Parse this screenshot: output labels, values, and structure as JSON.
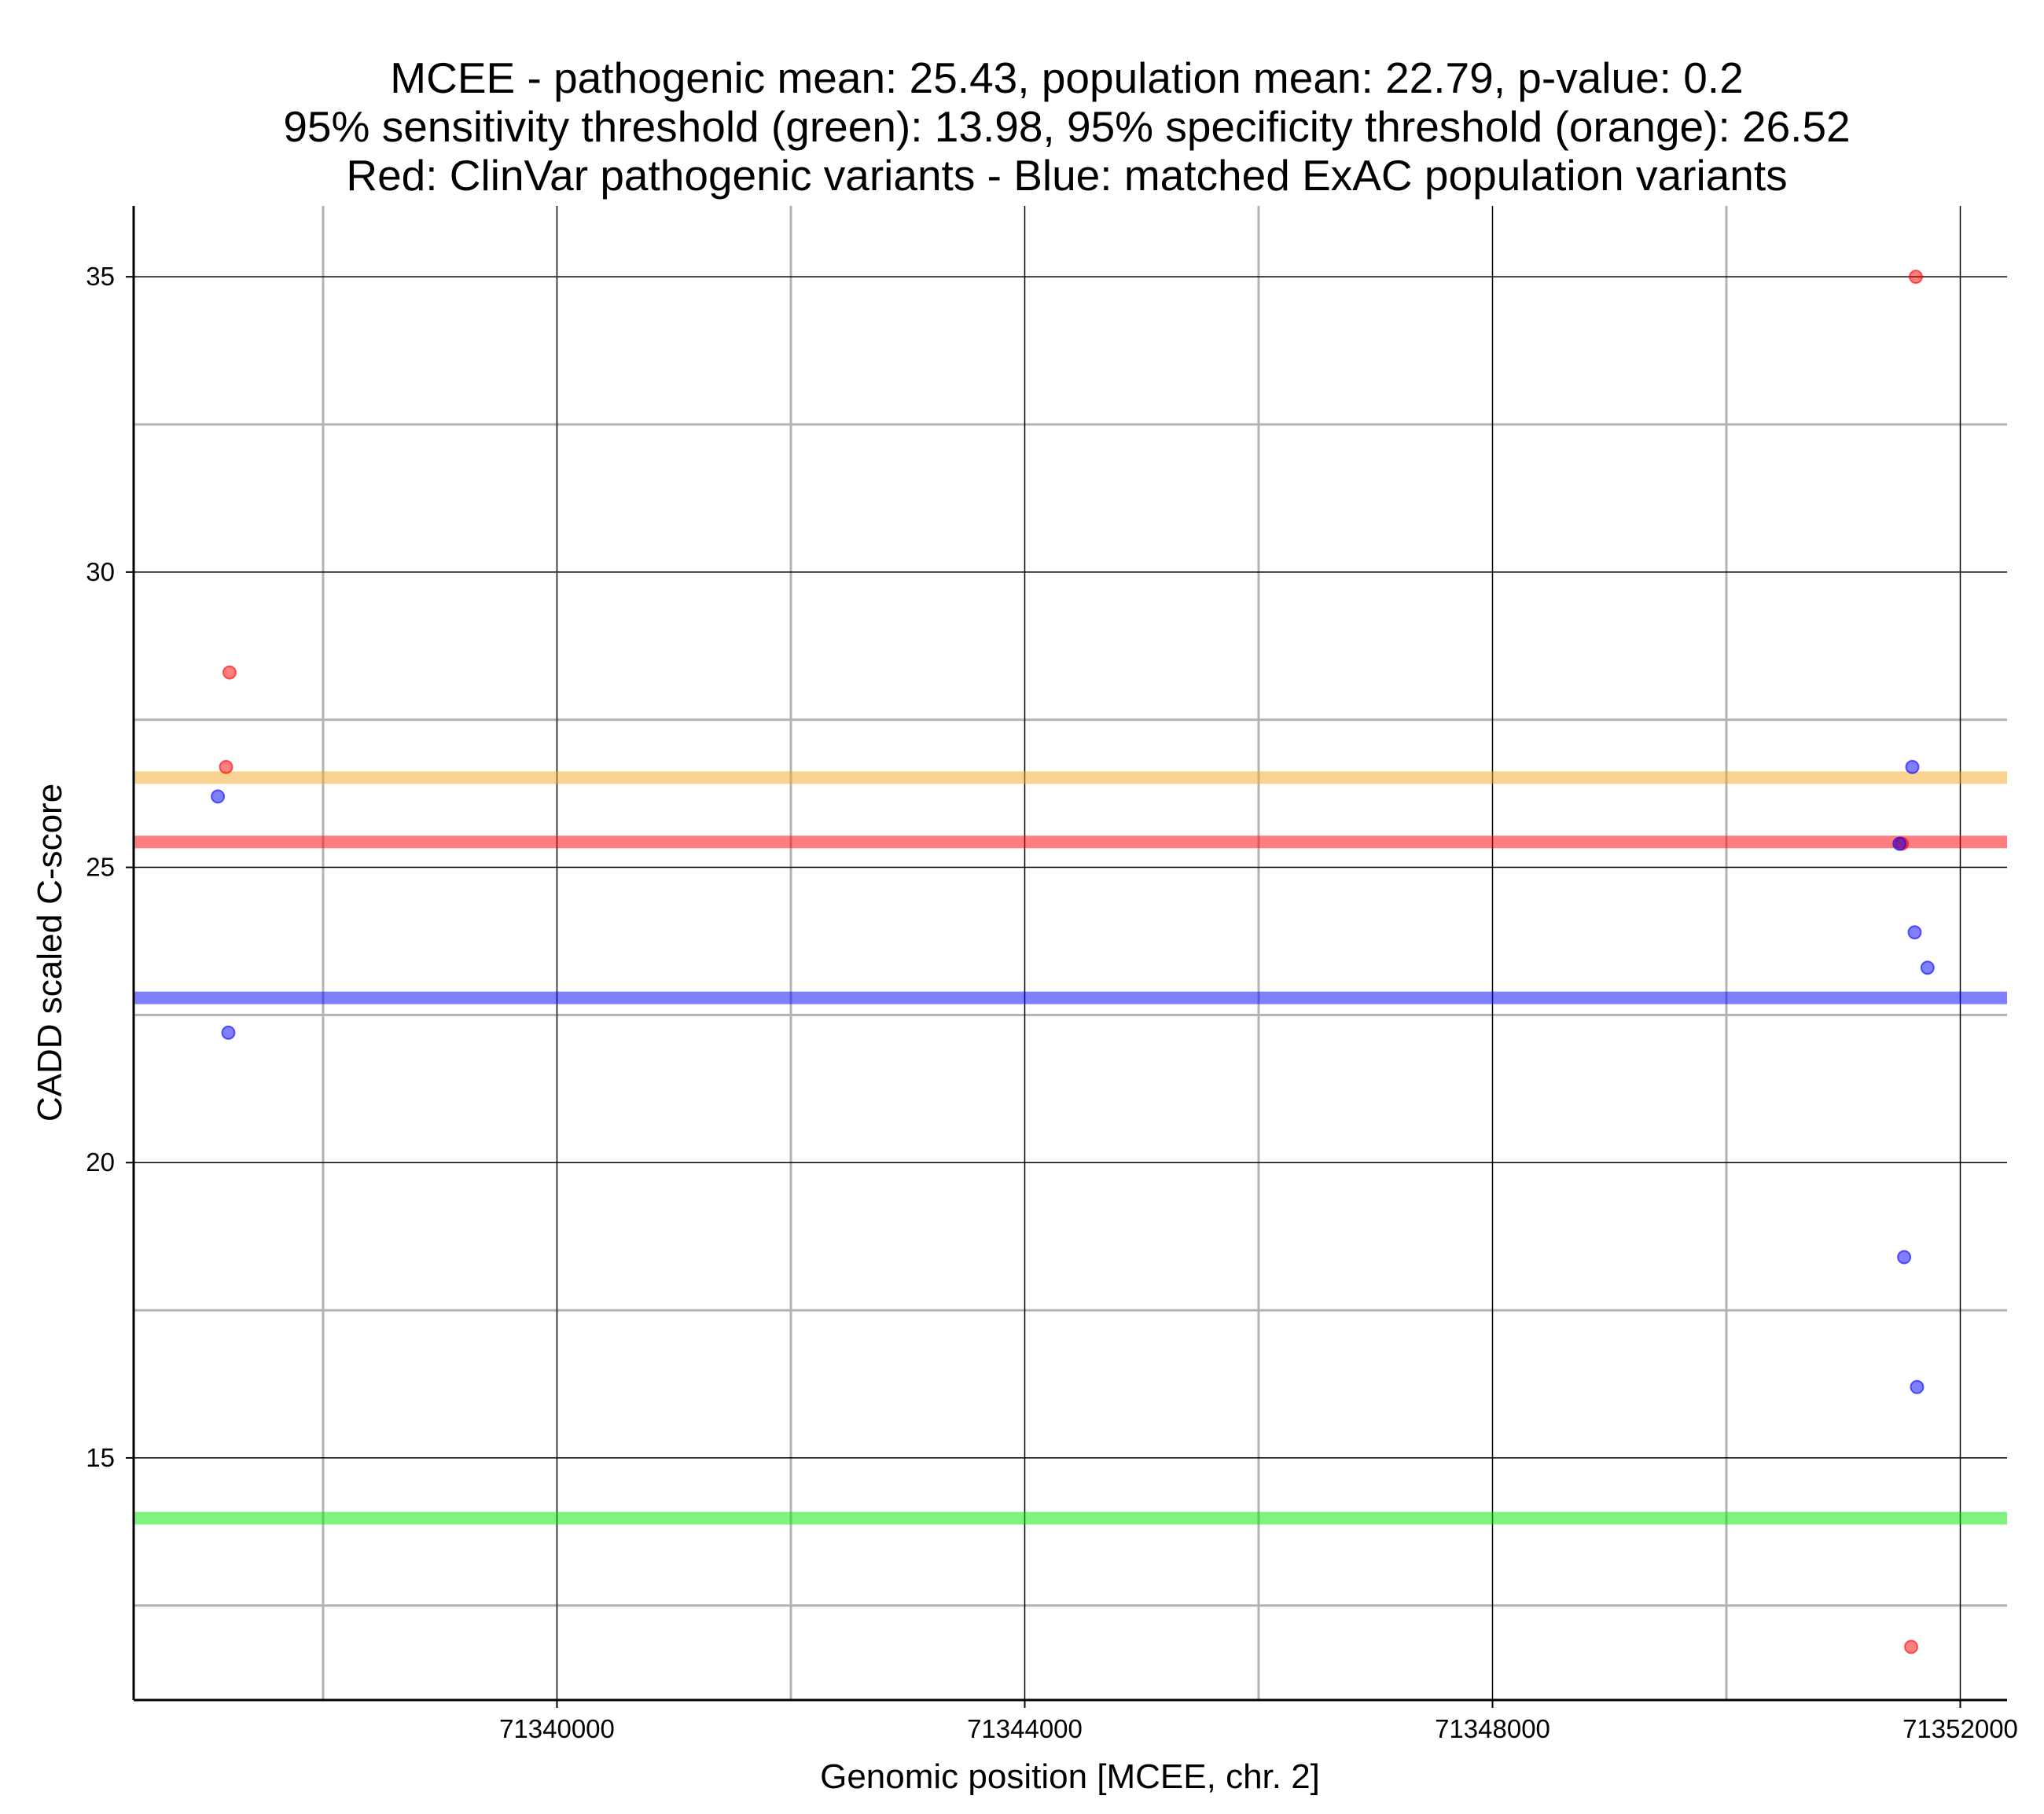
{
  "chart_data": {
    "type": "scatter",
    "title_lines": [
      "MCEE - pathogenic mean: 25.43, population mean: 22.79, p-value: 0.2",
      "95% sensitivity threshold (green): 13.98, 95% specificity threshold (orange): 26.52",
      "Red: ClinVar pathogenic variants - Blue: matched ExAC population variants"
    ],
    "xlabel": "Genomic position [MCEE, chr. 2]",
    "ylabel": "CADD scaled C-score",
    "xlim": [
      71336380,
      71352400
    ],
    "ylim": [
      10.9,
      36.2
    ],
    "x_ticks": [
      71340000,
      71344000,
      71348000,
      71352000
    ],
    "x_tick_labels": [
      "71340000",
      "71344000",
      "71348000",
      "71352000"
    ],
    "x_minor_gridlines": [
      71338000,
      71342000,
      71346000,
      71350000
    ],
    "y_ticks": [
      15,
      20,
      25,
      30,
      35
    ],
    "y_tick_labels": [
      "15",
      "20",
      "25",
      "30",
      "35"
    ],
    "y_minor_gridlines": [
      12.5,
      17.5,
      22.5,
      27.5,
      32.5
    ],
    "grid": true,
    "colors": {
      "pathogenic": "#ff0000",
      "population": "#0000ff",
      "sensitivity": "#00e600",
      "specificity": "#f5a623",
      "major_grid": "#000000",
      "minor_grid": "#b3b3b3"
    },
    "reference_lines": [
      {
        "name": "specificity-threshold",
        "y": 26.52,
        "color": "#f5a623"
      },
      {
        "name": "pathogenic-mean",
        "y": 25.43,
        "color": "#ff0000"
      },
      {
        "name": "population-mean",
        "y": 22.79,
        "color": "#0000ff"
      },
      {
        "name": "sensitivity-threshold",
        "y": 13.98,
        "color": "#00e600"
      }
    ],
    "series": [
      {
        "name": "ClinVar pathogenic variants",
        "color": "#ff0000",
        "points": [
          {
            "x": 71337200,
            "y": 28.3
          },
          {
            "x": 71337170,
            "y": 26.7
          },
          {
            "x": 71351620,
            "y": 35.0
          },
          {
            "x": 71351500,
            "y": 25.4
          },
          {
            "x": 71351580,
            "y": 11.8
          }
        ]
      },
      {
        "name": "matched ExAC population variants",
        "color": "#0000ff",
        "points": [
          {
            "x": 71337100,
            "y": 26.2
          },
          {
            "x": 71337190,
            "y": 22.2
          },
          {
            "x": 71351480,
            "y": 25.4
          },
          {
            "x": 71351590,
            "y": 26.7
          },
          {
            "x": 71351610,
            "y": 23.9
          },
          {
            "x": 71351720,
            "y": 23.3
          },
          {
            "x": 71351520,
            "y": 18.4
          },
          {
            "x": 71351630,
            "y": 16.2
          }
        ]
      }
    ]
  }
}
